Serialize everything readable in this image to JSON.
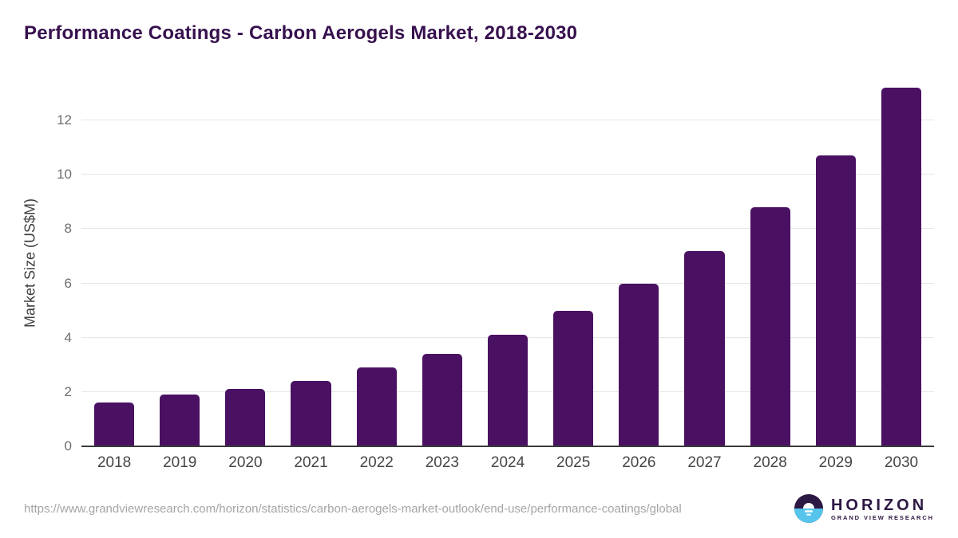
{
  "title": "Performance Coatings - Carbon Aerogels Market, 2018-2030",
  "chart_data": {
    "type": "bar",
    "categories": [
      "2018",
      "2019",
      "2020",
      "2021",
      "2022",
      "2023",
      "2024",
      "2025",
      "2026",
      "2027",
      "2028",
      "2029",
      "2030"
    ],
    "values": [
      1.6,
      1.9,
      2.1,
      2.4,
      2.9,
      3.4,
      4.1,
      5.0,
      6.0,
      7.2,
      8.8,
      10.7,
      13.2
    ],
    "title": "Performance Coatings - Carbon Aerogels Market, 2018-2030",
    "xlabel": "",
    "ylabel": "Market Size (US$M)",
    "ylim": [
      0,
      13.5
    ],
    "yticks": [
      0,
      2,
      4,
      6,
      8,
      10,
      12
    ],
    "grid": true,
    "legend": "none",
    "bar_color": "#4a1162"
  },
  "colors": {
    "title": "#37104e",
    "bar": "#4a1162",
    "gridline": "#e6e6e6",
    "axis_line": "#3a3a3a",
    "logo_purple": "#2d1844",
    "logo_blue": "#57c4ec"
  },
  "footer": {
    "source_url": "https://www.grandviewresearch.com/horizon/statistics/carbon-aerogels-market-outlook/end-use/performance-coatings/global",
    "logo": {
      "name": "HORIZON",
      "subtext": "GRAND VIEW RESEARCH"
    }
  }
}
